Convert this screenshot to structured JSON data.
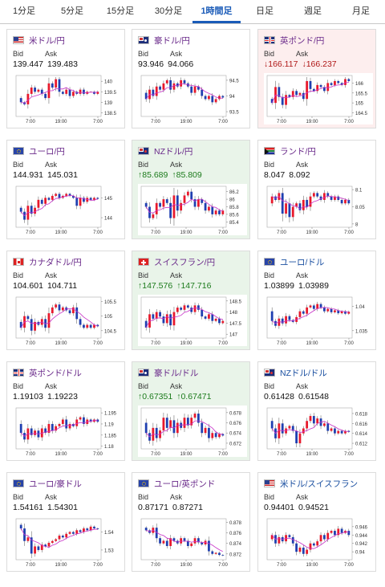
{
  "tabs": [
    {
      "label": "1分足",
      "active": false
    },
    {
      "label": "5分足",
      "active": false
    },
    {
      "label": "15分足",
      "active": false
    },
    {
      "label": "30分足",
      "active": false
    },
    {
      "label": "1時間足",
      "active": true
    },
    {
      "label": "日足",
      "active": false
    },
    {
      "label": "週足",
      "active": false
    },
    {
      "label": "月足",
      "active": false
    }
  ],
  "bid_label": "Bid",
  "ask_label": "Ask",
  "colors": {
    "up_candle": "#e8192c",
    "down_candle": "#1f3fb0",
    "moving_average": "#c832c8",
    "up_card": "#e9f4e9",
    "down_card": "#fdeeee"
  },
  "cards": [
    {
      "pair": "米ドル/円",
      "flag": "us",
      "trend": "none",
      "bid": "139.447",
      "ask": "139.483",
      "chart_data": {
        "type": "candlestick",
        "ylim": [
          138.4,
          140.2
        ],
        "yticks": [
          "140",
          "139.5",
          "139",
          "138.5"
        ],
        "xticks": [
          "7:00",
          "19:00",
          "7:00"
        ],
        "path": [
          139.2,
          139.0,
          138.9,
          139.4,
          139.7,
          139.5,
          139.6,
          139.4,
          139.2,
          139.9,
          139.7,
          140.1,
          139.5,
          139.4,
          139.6,
          139.3,
          139.5,
          139.4,
          139.6,
          139.4,
          139.5,
          139.5,
          139.4,
          139.5
        ]
      }
    },
    {
      "pair": "豪ドル/円",
      "flag": "au",
      "trend": "none",
      "bid": "93.946",
      "ask": "94.066",
      "chart_data": {
        "type": "candlestick",
        "ylim": [
          93.4,
          94.6
        ],
        "yticks": [
          "94.5",
          "94",
          "93.5"
        ],
        "xticks": [
          "7:00",
          "19:00",
          "7:00"
        ],
        "path": [
          94.1,
          93.9,
          94.2,
          94.0,
          94.3,
          94.2,
          94.4,
          94.5,
          94.2,
          94.4,
          94.3,
          94.5,
          94.4,
          94.3,
          94.1,
          94.3,
          94.2,
          94.0,
          93.9,
          94.0,
          93.8,
          93.9,
          94.0,
          93.95
        ]
      }
    },
    {
      "pair": "英ポンド/円",
      "flag": "gb",
      "trend": "down",
      "bid": "166.117",
      "ask": "166.237",
      "chart_data": {
        "type": "candlestick",
        "ylim": [
          164.4,
          166.3
        ],
        "yticks": [
          "166",
          "165.5",
          "165",
          "164.5"
        ],
        "xticks": [
          "7:00",
          "19:00",
          "7:00"
        ],
        "path": [
          165.2,
          165.0,
          165.8,
          165.3,
          164.9,
          165.4,
          165.3,
          165.6,
          165.4,
          165.5,
          165.2,
          166.1,
          165.7,
          165.6,
          165.9,
          165.8,
          165.6,
          166.0,
          165.9,
          166.1,
          166.0,
          165.9,
          166.2,
          166.1
        ]
      }
    },
    {
      "pair": "ユーロ/円",
      "flag": "eu",
      "trend": "none",
      "bid": "144.931",
      "ask": "145.031",
      "chart_data": {
        "type": "candlestick",
        "ylim": [
          143.6,
          145.5
        ],
        "yticks": [
          "145",
          "144"
        ],
        "xticks": [
          "7:00",
          "19:00",
          "7:00"
        ],
        "path": [
          144.5,
          144.3,
          143.9,
          144.6,
          144.2,
          144.5,
          144.9,
          144.7,
          145.0,
          144.9,
          145.1,
          145.2,
          145.0,
          145.1,
          145.2,
          145.1,
          145.0,
          144.6,
          145.0,
          144.8,
          145.0,
          144.9,
          145.0,
          144.95
        ]
      }
    },
    {
      "pair": "NZドル/円",
      "flag": "nz",
      "trend": "up",
      "bid": "85.689",
      "ask": "85.809",
      "chart_data": {
        "type": "candlestick",
        "ylim": [
          85.3,
          86.3
        ],
        "yticks": [
          "86.2",
          "86",
          "85.8",
          "85.6",
          "85.4"
        ],
        "xticks": [
          "7:00",
          "19:00",
          "7:00"
        ],
        "path": [
          85.9,
          85.8,
          85.5,
          85.6,
          85.9,
          85.8,
          86.0,
          85.9,
          85.5,
          86.1,
          85.7,
          85.9,
          86.1,
          86.2,
          86.0,
          85.8,
          86.0,
          85.9,
          85.7,
          85.8,
          85.6,
          85.7,
          85.6,
          85.7
        ]
      }
    },
    {
      "pair": "ランド/円",
      "flag": "za",
      "trend": "none",
      "bid": "8.047",
      "ask": "8.092",
      "chart_data": {
        "type": "candlestick",
        "ylim": [
          7.995,
          8.105
        ],
        "yticks": [
          "8.1",
          "8.05",
          "8"
        ],
        "xticks": [
          "7:00",
          "19:00",
          "7:00"
        ],
        "path": [
          8.06,
          8.08,
          8.07,
          8.09,
          8.03,
          8.06,
          8.02,
          8.05,
          8.06,
          8.04,
          8.07,
          8.05,
          8.08,
          8.09,
          8.08,
          8.07,
          8.09,
          8.08,
          8.07,
          8.08,
          8.07,
          8.06,
          8.07,
          8.06
        ]
      }
    },
    {
      "pair": "カナダドル/円",
      "flag": "ca",
      "trend": "none",
      "bid": "104.601",
      "ask": "104.711",
      "chart_data": {
        "type": "candlestick",
        "ylim": [
          104.3,
          105.6
        ],
        "yticks": [
          "105.5",
          "105",
          "104.5"
        ],
        "xticks": [
          "7:00",
          "19:00",
          "7:00"
        ],
        "path": [
          104.8,
          104.6,
          105.0,
          104.9,
          104.5,
          104.8,
          104.7,
          104.9,
          104.6,
          105.1,
          105.3,
          105.4,
          105.2,
          105.3,
          105.2,
          105.1,
          105.3,
          104.9,
          104.7,
          104.6,
          104.7,
          104.6,
          104.7,
          104.65
        ]
      }
    },
    {
      "pair": "スイスフラン/円",
      "flag": "ch",
      "trend": "up",
      "bid": "147.576",
      "ask": "147.716",
      "chart_data": {
        "type": "candlestick",
        "ylim": [
          146.9,
          148.6
        ],
        "yticks": [
          "148.5",
          "148",
          "147.5",
          "147"
        ],
        "xticks": [
          "7:00",
          "19:00",
          "7:00"
        ],
        "path": [
          147.6,
          147.3,
          147.9,
          147.7,
          148.0,
          147.8,
          147.5,
          147.9,
          147.4,
          148.0,
          148.2,
          148.1,
          148.3,
          148.2,
          148.0,
          148.3,
          148.1,
          147.8,
          147.7,
          147.9,
          147.6,
          147.7,
          147.5,
          147.6
        ]
      }
    },
    {
      "pair": "ユーロ/ドル",
      "flag": "eu",
      "trend": "none",
      "bid": "1.03899",
      "ask": "1.03989",
      "chart_data": {
        "type": "candlestick",
        "ylim": [
          1.0338,
          1.0416
        ],
        "yticks": [
          "1.04",
          "1.035"
        ],
        "xticks": [
          "7:00",
          "19:00",
          "7:00"
        ],
        "path": [
          1.039,
          1.037,
          1.036,
          1.0375,
          1.0365,
          1.038,
          1.0372,
          1.0368,
          1.0378,
          1.039,
          1.0385,
          1.0398,
          1.0402,
          1.0395,
          1.0405,
          1.0398,
          1.039,
          1.0395,
          1.0388,
          1.0392,
          1.0386,
          1.039,
          1.0385,
          1.0389
        ]
      }
    },
    {
      "pair": "英ポンド/ドル",
      "flag": "gb",
      "trend": "none",
      "bid": "1.19103",
      "ask": "1.19223",
      "chart_data": {
        "type": "candlestick",
        "ylim": [
          1.1795,
          1.1965
        ],
        "yticks": [
          "1.195",
          "1.19",
          "1.185",
          "1.18"
        ],
        "xticks": [
          "7:00",
          "19:00",
          "7:00"
        ],
        "path": [
          1.19,
          1.186,
          1.183,
          1.188,
          1.185,
          1.187,
          1.184,
          1.188,
          1.186,
          1.19,
          1.187,
          1.189,
          1.19,
          1.192,
          1.188,
          1.19,
          1.189,
          1.192,
          1.193,
          1.19,
          1.192,
          1.191,
          1.192,
          1.191
        ]
      }
    },
    {
      "pair": "豪ドル/ドル",
      "flag": "au",
      "trend": "up",
      "bid": "0.67351",
      "ask": "0.67471",
      "chart_data": {
        "type": "candlestick",
        "ylim": [
          0.6712,
          0.6786
        ],
        "yticks": [
          "0.678",
          "0.676",
          "0.674",
          "0.672"
        ],
        "xticks": [
          "7:00",
          "19:00",
          "7:00"
        ],
        "path": [
          0.676,
          0.674,
          0.6725,
          0.675,
          0.673,
          0.6745,
          0.677,
          0.675,
          0.6765,
          0.674,
          0.676,
          0.675,
          0.677,
          0.6755,
          0.677,
          0.6778,
          0.676,
          0.674,
          0.675,
          0.673,
          0.674,
          0.6732,
          0.6738,
          0.6735
        ]
      }
    },
    {
      "pair": "NZドル/ドル",
      "flag": "nz",
      "trend": "none",
      "bid": "0.61428",
      "ask": "0.61548",
      "chart_data": {
        "type": "candlestick",
        "ylim": [
          0.6112,
          0.6188
        ],
        "yticks": [
          "0.618",
          "0.616",
          "0.614",
          "0.612"
        ],
        "xticks": [
          "7:00",
          "19:00",
          "7:00"
        ],
        "path": [
          0.6165,
          0.615,
          0.613,
          0.616,
          0.614,
          0.615,
          0.6155,
          0.6145,
          0.612,
          0.614,
          0.615,
          0.6165,
          0.6175,
          0.616,
          0.617,
          0.6155,
          0.616,
          0.6145,
          0.615,
          0.614,
          0.6145,
          0.614,
          0.6145,
          0.6143
        ]
      }
    },
    {
      "pair": "ユーロ/豪ドル",
      "flag": "eu",
      "trend": "none",
      "bid": "1.54161",
      "ask": "1.54301",
      "chart_data": {
        "type": "candlestick",
        "ylim": [
          1.5255,
          1.5465
        ],
        "yticks": [
          "1.54",
          "1.53"
        ],
        "xticks": [
          "7:00",
          "19:00",
          "7:00"
        ],
        "path": [
          1.544,
          1.542,
          1.535,
          1.537,
          1.528,
          1.532,
          1.53,
          1.533,
          1.532,
          1.534,
          1.535,
          1.536,
          1.538,
          1.537,
          1.539,
          1.54,
          1.539,
          1.541,
          1.54,
          1.542,
          1.541,
          1.543,
          1.542,
          1.5416
        ]
      }
    },
    {
      "pair": "ユーロ/英ポンド",
      "flag": "eu",
      "trend": "none",
      "bid": "0.87171",
      "ask": "0.87271",
      "chart_data": {
        "type": "candlestick",
        "ylim": [
          0.8712,
          0.8784
        ],
        "yticks": [
          "0.878",
          "0.876",
          "0.874",
          "0.872"
        ],
        "xticks": [
          "7:00",
          "19:00",
          "7:00"
        ],
        "path": [
          0.877,
          0.8765,
          0.876,
          0.877,
          0.875,
          0.874,
          0.8745,
          0.8735,
          0.875,
          0.8745,
          0.874,
          0.875,
          0.8745,
          0.8735,
          0.874,
          0.875,
          0.8742,
          0.8738,
          0.8745,
          0.8725,
          0.872,
          0.8722,
          0.8718,
          0.8717
        ]
      }
    },
    {
      "pair": "米ドル/スイスフラン",
      "flag": "us",
      "trend": "none",
      "bid": "0.94401",
      "ask": "0.94521",
      "chart_data": {
        "type": "candlestick",
        "ylim": [
          0.9385,
          0.9475
        ],
        "yticks": [
          "0.946",
          "0.944",
          "0.942",
          "0.94"
        ],
        "xticks": [
          "7:00",
          "19:00",
          "7:00"
        ],
        "path": [
          0.943,
          0.944,
          0.942,
          0.9435,
          0.9425,
          0.944,
          0.9435,
          0.942,
          0.94,
          0.941,
          0.9395,
          0.9405,
          0.942,
          0.9415,
          0.9425,
          0.944,
          0.943,
          0.9445,
          0.945,
          0.944,
          0.9455,
          0.9445,
          0.945,
          0.944
        ]
      }
    }
  ]
}
